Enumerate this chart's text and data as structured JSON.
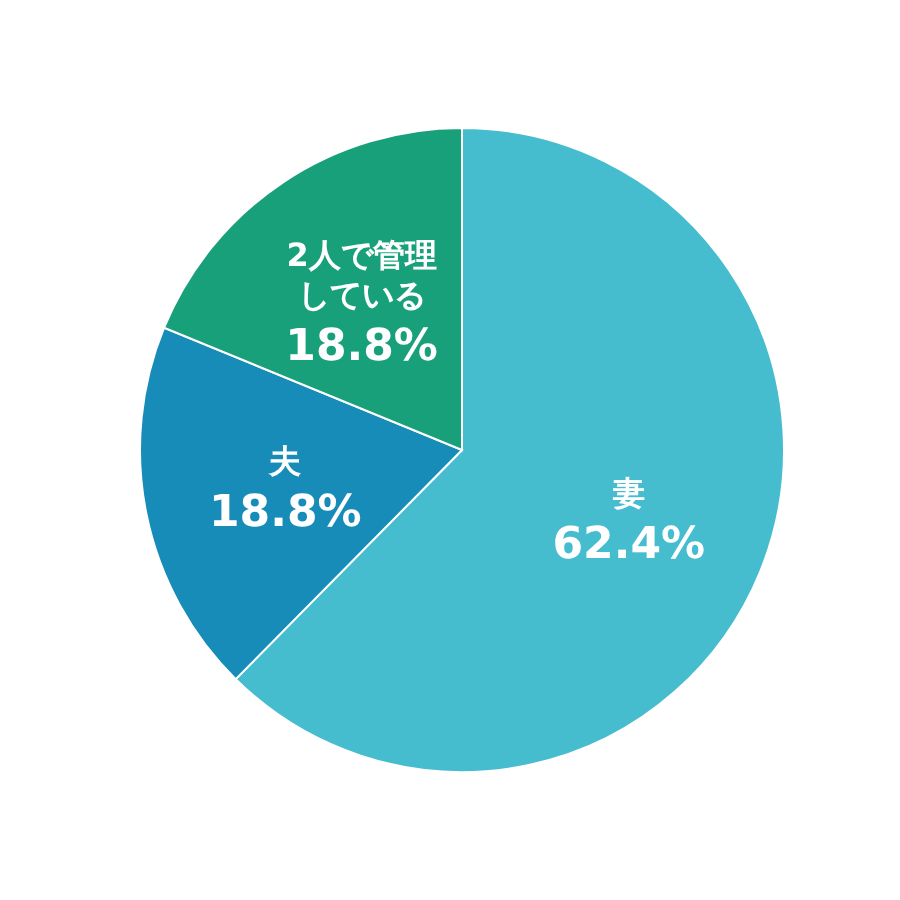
{
  "chart_data": {
    "type": "pie",
    "categories": [
      "妻",
      "夫",
      "2人で管理している"
    ],
    "values": [
      62.4,
      18.8,
      18.8
    ],
    "colors": [
      "#46bccf",
      "#178cb8",
      "#18a07a"
    ],
    "value_labels": [
      "62.4%",
      "18.8%",
      "18.8%"
    ]
  }
}
